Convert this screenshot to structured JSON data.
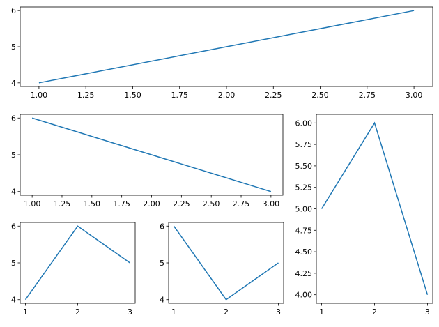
{
  "chart_data": [
    {
      "type": "line",
      "x": [
        1,
        2,
        3
      ],
      "series": [
        {
          "color": "#1f77b4",
          "values": [
            4,
            5,
            6
          ]
        }
      ],
      "xlim": [
        0.9,
        3.1
      ],
      "ylim": [
        3.9,
        6.1
      ],
      "xticks": [
        {
          "value": 1,
          "label": "1.00"
        },
        {
          "value": 1.25,
          "label": "1.25"
        },
        {
          "value": 1.5,
          "label": "1.50"
        },
        {
          "value": 1.75,
          "label": "1.75"
        },
        {
          "value": 2,
          "label": "2.00"
        },
        {
          "value": 2.25,
          "label": "2.25"
        },
        {
          "value": 2.5,
          "label": "2.50"
        },
        {
          "value": 2.75,
          "label": "2.75"
        },
        {
          "value": 3,
          "label": "3.00"
        }
      ],
      "yticks": [
        4,
        5,
        6
      ]
    },
    {
      "type": "line",
      "x": [
        1,
        2,
        3
      ],
      "series": [
        {
          "color": "#1f77b4",
          "values": [
            6,
            5,
            4
          ]
        }
      ],
      "xlim": [
        0.9,
        3.1
      ],
      "ylim": [
        3.9,
        6.1
      ],
      "xticks": [
        {
          "value": 1,
          "label": "1.00"
        },
        {
          "value": 1.25,
          "label": "1.25"
        },
        {
          "value": 1.5,
          "label": "1.50"
        },
        {
          "value": 1.75,
          "label": "1.75"
        },
        {
          "value": 2,
          "label": "2.00"
        },
        {
          "value": 2.25,
          "label": "2.25"
        },
        {
          "value": 2.5,
          "label": "2.50"
        },
        {
          "value": 2.75,
          "label": "2.75"
        },
        {
          "value": 3,
          "label": "3.00"
        }
      ],
      "yticks": [
        4,
        5,
        6
      ]
    },
    {
      "type": "line",
      "x": [
        1,
        2,
        3
      ],
      "series": [
        {
          "color": "#1f77b4",
          "values": [
            5,
            6,
            4
          ]
        }
      ],
      "xlim": [
        0.9,
        3.1
      ],
      "ylim": [
        3.9,
        6.1
      ],
      "xticks": [
        1,
        2,
        3
      ],
      "yticks": [
        {
          "value": 4,
          "label": "4.00"
        },
        {
          "value": 4.25,
          "label": "4.25"
        },
        {
          "value": 4.5,
          "label": "4.50"
        },
        {
          "value": 4.75,
          "label": "4.75"
        },
        {
          "value": 5,
          "label": "5.00"
        },
        {
          "value": 5.25,
          "label": "5.25"
        },
        {
          "value": 5.5,
          "label": "5.50"
        },
        {
          "value": 5.75,
          "label": "5.75"
        },
        {
          "value": 6,
          "label": "6.00"
        }
      ]
    },
    {
      "type": "line",
      "x": [
        1,
        2,
        3
      ],
      "series": [
        {
          "color": "#1f77b4",
          "values": [
            4,
            6,
            5
          ]
        }
      ],
      "xlim": [
        0.9,
        3.1
      ],
      "ylim": [
        3.9,
        6.1
      ],
      "xticks": [
        1,
        2,
        3
      ],
      "yticks": [
        4,
        5,
        6
      ]
    },
    {
      "type": "line",
      "x": [
        1,
        2,
        3
      ],
      "series": [
        {
          "color": "#1f77b4",
          "values": [
            6,
            4,
            5
          ]
        }
      ],
      "xlim": [
        0.9,
        3.1
      ],
      "ylim": [
        3.9,
        6.1
      ],
      "xticks": [
        1,
        2,
        3
      ],
      "yticks": [
        4,
        5,
        6
      ]
    }
  ]
}
